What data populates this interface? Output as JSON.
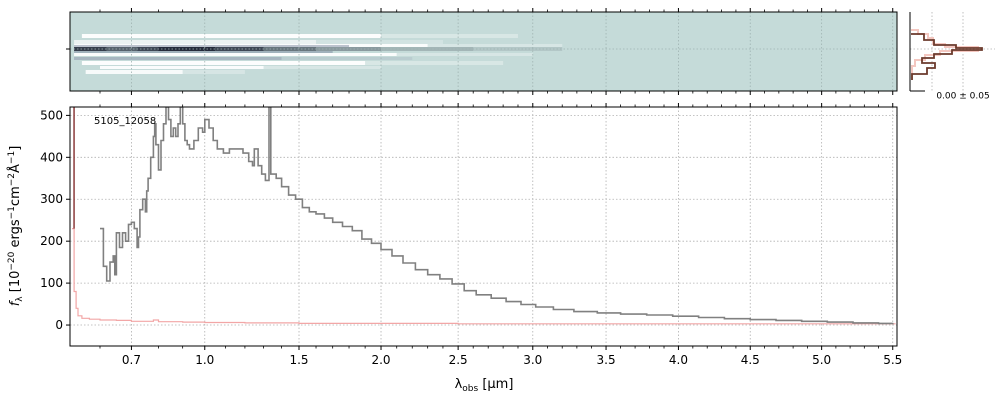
{
  "chart_data": [
    {
      "type": "heatmap",
      "name": "2D spectrum",
      "description_colormap": "bone_r",
      "background_color": "#c5dbd9",
      "trace_row_color": "#1c2233",
      "y_ticks": [
        ""
      ],
      "grid": true
    },
    {
      "type": "line",
      "name": "spatial profile",
      "series_colors": [
        "#f4c7c0",
        "#6b3a2c"
      ],
      "annotation": "0.00 ± 0.05",
      "grid": true
    },
    {
      "type": "line",
      "name": "1D spectrum",
      "object_label": "5105_12058",
      "xlabel": "λobs [μm]",
      "xlabel_main": "λ",
      "xlabel_sub": "obs",
      "xlabel_unit": " [μm]",
      "ylabel": "fλ [10−20 ergs−1cm−2Å−1]",
      "ylabel_f": "f",
      "ylabel_sub": "λ",
      "ylabel_rest": " [10",
      "ylabel_exp1": "−20",
      "ylabel_rest2": " ergs",
      "ylabel_exp2": "−1",
      "ylabel_rest3": "cm",
      "ylabel_exp3": "−2",
      "ylabel_rest4": "Å",
      "ylabel_exp4": "−1",
      "ylabel_end": "]",
      "xlim": [
        0.52,
        5.53
      ],
      "ylim": [
        -50,
        520
      ],
      "x_scale": "reciprocal (dispersion-like)",
      "x_ticks": [
        {
          "value": 0.7,
          "label": "0.7"
        },
        {
          "value": 1.0,
          "label": "1.0"
        },
        {
          "value": 1.5,
          "label": "1.5"
        },
        {
          "value": 2.0,
          "label": "2.0"
        },
        {
          "value": 2.5,
          "label": "2.5"
        },
        {
          "value": 3.0,
          "label": "3.0"
        },
        {
          "value": 3.5,
          "label": "3.5"
        },
        {
          "value": 4.0,
          "label": "4.0"
        },
        {
          "value": 4.5,
          "label": "4.5"
        },
        {
          "value": 5.0,
          "label": "5.0"
        },
        {
          "value": 5.5,
          "label": "5.5"
        }
      ],
      "y_ticks": [
        {
          "value": 0,
          "label": "0"
        },
        {
          "value": 100,
          "label": "100"
        },
        {
          "value": 200,
          "label": "200"
        },
        {
          "value": 300,
          "label": "300"
        },
        {
          "value": 400,
          "label": "400"
        },
        {
          "value": 500,
          "label": "500"
        }
      ],
      "grid": true,
      "series": [
        {
          "name": "flux",
          "color": "#808080",
          "step": true,
          "points": [
            [
              0.6,
              230
            ],
            [
              0.61,
              140
            ],
            [
              0.62,
              105
            ],
            [
              0.63,
              150
            ],
            [
              0.64,
              165
            ],
            [
              0.645,
              120
            ],
            [
              0.65,
              220
            ],
            [
              0.66,
              185
            ],
            [
              0.67,
              220
            ],
            [
              0.68,
              200
            ],
            [
              0.69,
              240
            ],
            [
              0.7,
              245
            ],
            [
              0.71,
              230
            ],
            [
              0.72,
              185
            ],
            [
              0.725,
              210
            ],
            [
              0.73,
              275
            ],
            [
              0.74,
              300
            ],
            [
              0.75,
              270
            ],
            [
              0.755,
              320
            ],
            [
              0.76,
              350
            ],
            [
              0.77,
              400
            ],
            [
              0.78,
              450
            ],
            [
              0.785,
              480
            ],
            [
              0.79,
              430
            ],
            [
              0.8,
              370
            ],
            [
              0.81,
              440
            ],
            [
              0.82,
              480
            ],
            [
              0.83,
              520
            ],
            [
              0.84,
              490
            ],
            [
              0.85,
              450
            ],
            [
              0.86,
              470
            ],
            [
              0.87,
              450
            ],
            [
              0.88,
              480
            ],
            [
              0.89,
              520
            ],
            [
              0.9,
              480
            ],
            [
              0.91,
              440
            ],
            [
              0.92,
              430
            ],
            [
              0.93,
              420
            ],
            [
              0.95,
              440
            ],
            [
              0.97,
              470
            ],
            [
              0.99,
              460
            ],
            [
              1.0,
              490
            ],
            [
              1.02,
              470
            ],
            [
              1.04,
              440
            ],
            [
              1.06,
              420
            ],
            [
              1.09,
              410
            ],
            [
              1.12,
              420
            ],
            [
              1.15,
              420
            ],
            [
              1.19,
              410
            ],
            [
              1.22,
              390
            ],
            [
              1.24,
              380
            ],
            [
              1.25,
              420
            ],
            [
              1.27,
              380
            ],
            [
              1.29,
              360
            ],
            [
              1.31,
              345
            ],
            [
              1.33,
              525
            ],
            [
              1.34,
              360
            ],
            [
              1.37,
              350
            ],
            [
              1.4,
              330
            ],
            [
              1.44,
              310
            ],
            [
              1.48,
              300
            ],
            [
              1.52,
              280
            ],
            [
              1.56,
              270
            ],
            [
              1.6,
              265
            ],
            [
              1.65,
              255
            ],
            [
              1.7,
              245
            ],
            [
              1.76,
              235
            ],
            [
              1.82,
              225
            ],
            [
              1.88,
              205
            ],
            [
              1.94,
              195
            ],
            [
              2.0,
              180
            ],
            [
              2.07,
              165
            ],
            [
              2.14,
              148
            ],
            [
              2.22,
              132
            ],
            [
              2.3,
              120
            ],
            [
              2.38,
              110
            ],
            [
              2.46,
              98
            ],
            [
              2.54,
              82
            ],
            [
              2.62,
              72
            ],
            [
              2.72,
              64
            ],
            [
              2.82,
              56
            ],
            [
              2.92,
              49
            ],
            [
              3.02,
              43
            ],
            [
              3.14,
              37
            ],
            [
              3.28,
              32
            ],
            [
              3.44,
              29
            ],
            [
              3.6,
              26
            ],
            [
              3.78,
              24
            ],
            [
              3.96,
              21
            ],
            [
              4.14,
              18
            ],
            [
              4.32,
              15
            ],
            [
              4.5,
              13
            ],
            [
              4.68,
              11
            ],
            [
              4.86,
              9
            ],
            [
              5.04,
              7
            ],
            [
              5.22,
              5
            ],
            [
              5.4,
              4
            ],
            [
              5.5,
              5
            ]
          ]
        },
        {
          "name": "error",
          "color": "#f2a6a6",
          "step": true,
          "points": [
            [
              0.525,
              230
            ],
            [
              0.53,
              80
            ],
            [
              0.535,
              40
            ],
            [
              0.54,
              22
            ],
            [
              0.55,
              16
            ],
            [
              0.57,
              14
            ],
            [
              0.6,
              12
            ],
            [
              0.65,
              11
            ],
            [
              0.7,
              9
            ],
            [
              0.75,
              9
            ],
            [
              0.78,
              12
            ],
            [
              0.8,
              8
            ],
            [
              0.9,
              7
            ],
            [
              1.0,
              6
            ],
            [
              1.2,
              5
            ],
            [
              1.5,
              4
            ],
            [
              2.0,
              4
            ],
            [
              2.5,
              3
            ],
            [
              3.0,
              3
            ],
            [
              4.0,
              3
            ],
            [
              5.0,
              3
            ],
            [
              5.52,
              3
            ]
          ]
        }
      ],
      "left_edge_line": {
        "color": "#8b3a3a",
        "x": 0.53,
        "y_from": 230,
        "y_to": 520
      }
    }
  ]
}
